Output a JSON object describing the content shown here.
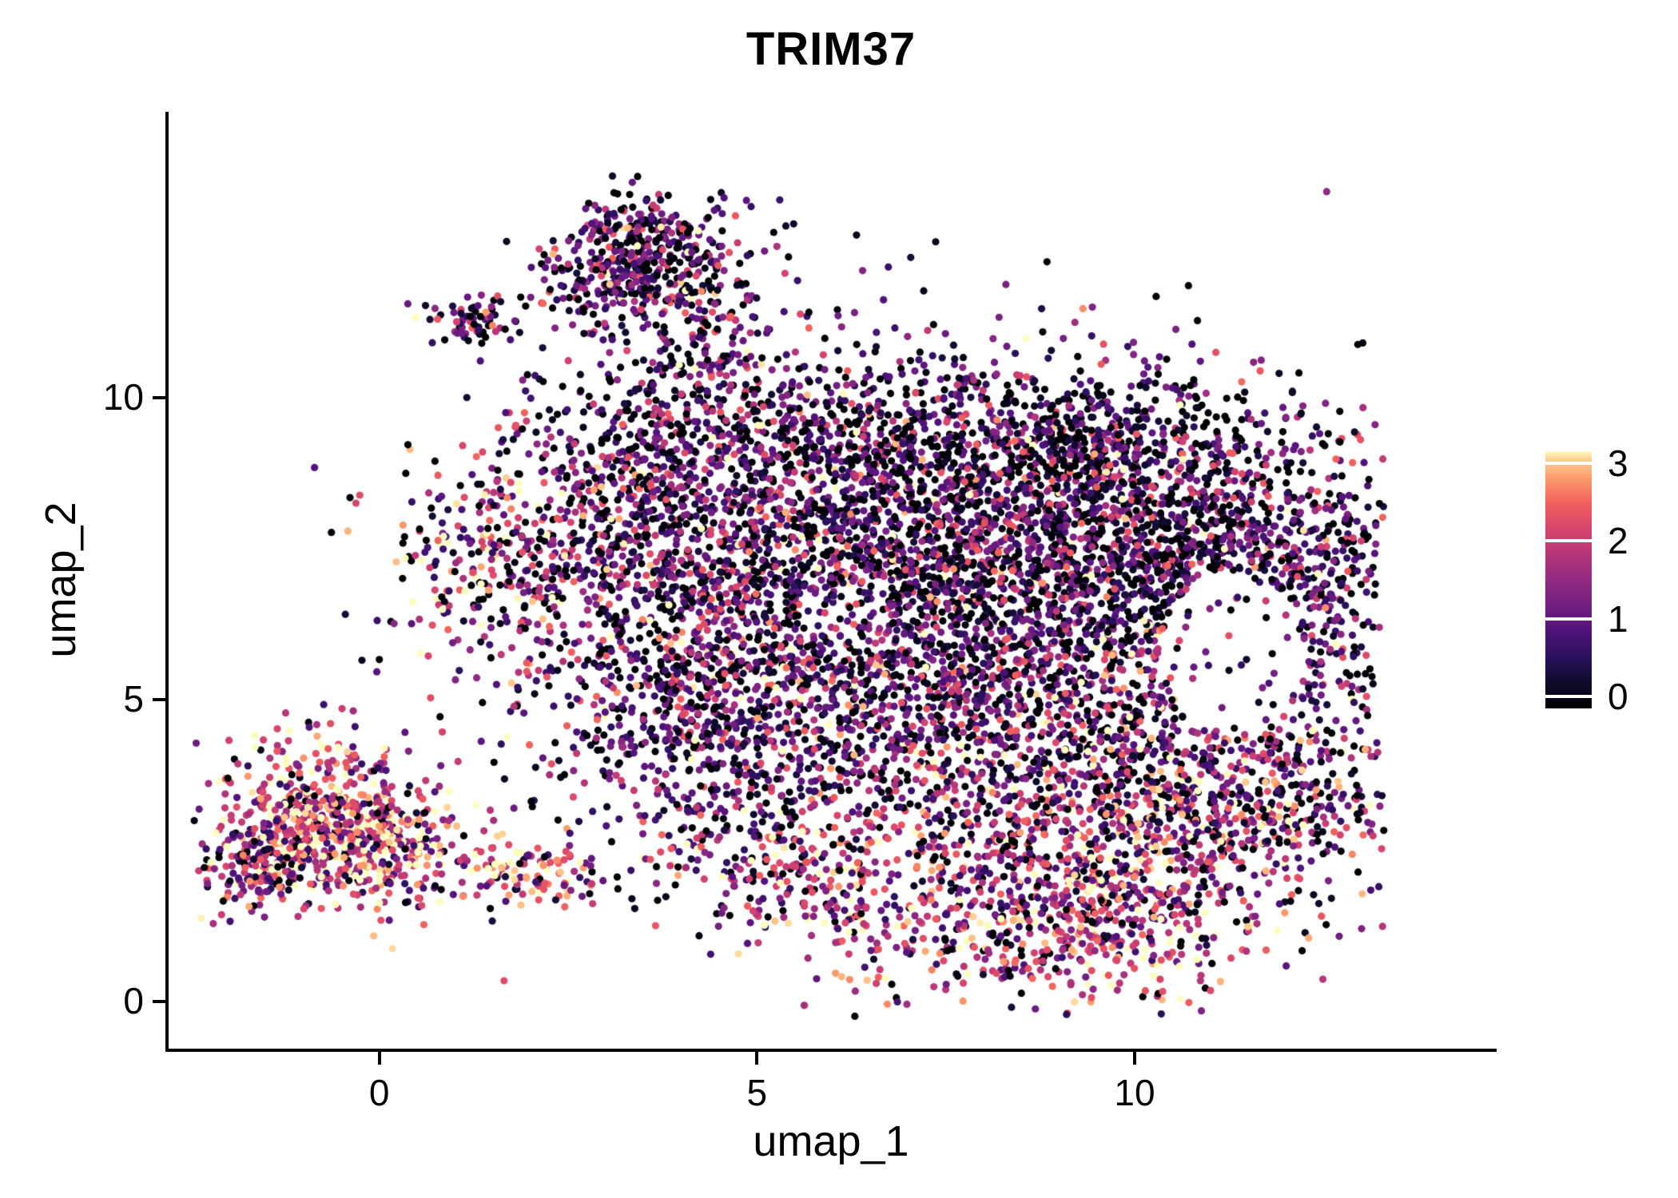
{
  "chart_data": {
    "type": "scatter",
    "title": "TRIM37",
    "xlabel": "umap_1",
    "ylabel": "umap_2",
    "xlim": [
      -2.8,
      14.76
    ],
    "ylim": [
      -0.78,
      14.74
    ],
    "x_ticks": [
      0,
      5,
      10
    ],
    "x_tick_labels": [
      "0",
      "5",
      "10"
    ],
    "y_ticks": [
      0,
      5,
      10
    ],
    "y_tick_labels": [
      "0",
      "5",
      "10"
    ],
    "grid": false,
    "point_radius_px": 4.6,
    "background": "#ffffff",
    "axis_color": "#000000",
    "colormap": {
      "name": "magma",
      "stops": [
        [
          0.0,
          "#000004"
        ],
        [
          0.1,
          "#0e0b2b"
        ],
        [
          0.2,
          "#2c115f"
        ],
        [
          0.3,
          "#51127c"
        ],
        [
          0.4,
          "#721f81"
        ],
        [
          0.5,
          "#932b80"
        ],
        [
          0.6,
          "#b63679"
        ],
        [
          0.7,
          "#d8456c"
        ],
        [
          0.8,
          "#f1605d"
        ],
        [
          0.9,
          "#fe9f6d"
        ],
        [
          0.97,
          "#fed395"
        ],
        [
          1.0,
          "#fcfdbf"
        ]
      ]
    },
    "color_scale": {
      "min": 0,
      "max": 3,
      "bar_range": [
        -0.15,
        3.15
      ],
      "ticks": [
        3,
        2,
        1,
        0
      ],
      "tick_labels": [
        "3",
        "2",
        "1",
        "0"
      ],
      "legend_position": "right"
    },
    "expr_profiles": {
      "default": [
        0.4,
        0.37,
        0.18,
        0.05
      ],
      "dark": [
        0.48,
        0.36,
        0.14,
        0.02
      ],
      "med_warm": [
        0.27,
        0.32,
        0.29,
        0.12
      ],
      "warm": [
        0.22,
        0.3,
        0.33,
        0.15
      ],
      "hot": [
        0.12,
        0.22,
        0.42,
        0.24
      ],
      "hottest": [
        0.1,
        0.18,
        0.38,
        0.34
      ],
      "peninsula": [
        0.42,
        0.38,
        0.16,
        0.04
      ]
    },
    "clusters": [
      {
        "x": 5.5,
        "y": 7.5,
        "sx": 1.8,
        "sy": 1.5,
        "n": 1300,
        "p": "default"
      },
      {
        "x": 8.5,
        "y": 7.6,
        "sx": 1.7,
        "sy": 1.4,
        "n": 1400,
        "p": "dark"
      },
      {
        "x": 11.0,
        "y": 7.6,
        "sx": 1.2,
        "sy": 1.2,
        "n": 800,
        "p": "dark"
      },
      {
        "x": 7.0,
        "y": 5.0,
        "sx": 2.2,
        "sy": 1.3,
        "n": 1100,
        "p": "default"
      },
      {
        "x": 9.5,
        "y": 3.4,
        "sx": 1.6,
        "sy": 1.1,
        "n": 800,
        "p": "med_warm"
      },
      {
        "x": 8.9,
        "y": 1.4,
        "sx": 1.5,
        "sy": 0.75,
        "n": 650,
        "p": "hot"
      },
      {
        "x": 4.2,
        "y": 4.8,
        "sx": 1.1,
        "sy": 1.1,
        "n": 450,
        "p": "default"
      },
      {
        "x": 12.4,
        "y": 5.8,
        "sx": 0.7,
        "sy": 1.5,
        "n": 320,
        "p": "default"
      },
      {
        "x": 3.4,
        "y": 8.3,
        "sx": 1.0,
        "sy": 0.9,
        "n": 420,
        "p": "default"
      },
      {
        "x": 5.3,
        "y": 9.6,
        "sx": 1.4,
        "sy": 0.55,
        "n": 300,
        "p": "dark"
      },
      {
        "x": 1.6,
        "y": 7.2,
        "sx": 0.8,
        "sy": 0.8,
        "n": 260,
        "p": "med_warm"
      },
      {
        "x": 9.3,
        "y": 9.2,
        "sx": 1.3,
        "sy": 0.7,
        "n": 420,
        "p": "dark"
      },
      {
        "x": 11.5,
        "y": 3.2,
        "sx": 1.0,
        "sy": 0.8,
        "n": 330,
        "p": "med_warm"
      },
      {
        "x": 5.5,
        "y": 2.3,
        "sx": 0.9,
        "sy": 0.6,
        "n": 220,
        "p": "warm"
      },
      {
        "x": 7.5,
        "y": 6.2,
        "sx": 2.9,
        "sy": 2.4,
        "n": 700,
        "p": "default"
      },
      {
        "x": 3.6,
        "y": 12.6,
        "sx": 0.55,
        "sy": 0.5,
        "n": 260,
        "p": "peninsula"
      },
      {
        "x": 3.0,
        "y": 11.9,
        "sx": 0.5,
        "sy": 0.45,
        "n": 170,
        "p": "peninsula"
      },
      {
        "x": 1.25,
        "y": 11.3,
        "sx": 0.28,
        "sy": 0.22,
        "n": 70,
        "p": "peninsula"
      },
      {
        "x": 4.3,
        "y": 11.7,
        "sx": 0.45,
        "sy": 0.55,
        "n": 120,
        "p": "peninsula"
      },
      {
        "x": 4.4,
        "y": 10.6,
        "sx": 0.5,
        "sy": 0.45,
        "n": 90,
        "p": "peninsula"
      },
      {
        "x": -1.2,
        "y": 3.1,
        "sx": 0.55,
        "sy": 0.7,
        "n": 300,
        "p": "hot"
      },
      {
        "x": -0.4,
        "y": 3.0,
        "sx": 0.5,
        "sy": 0.6,
        "n": 250,
        "p": "hot"
      },
      {
        "x": 0.1,
        "y": 2.5,
        "sx": 0.45,
        "sy": 0.5,
        "n": 200,
        "p": "hottest"
      },
      {
        "x": -1.5,
        "y": 2.2,
        "sx": 0.4,
        "sy": 0.4,
        "n": 130,
        "p": "warm"
      },
      {
        "x": 1.7,
        "y": 2.2,
        "sx": 0.45,
        "sy": 0.35,
        "n": 80,
        "p": "hottest"
      },
      {
        "x": 2.5,
        "y": 2.0,
        "sx": 0.3,
        "sy": 0.25,
        "n": 40,
        "p": "hot"
      }
    ],
    "exclusions": [
      {
        "x": 11.3,
        "y": 5.8,
        "rx": 0.95,
        "ry": 1.35,
        "keep": 0.12
      },
      {
        "x": 6.2,
        "y": 6.3,
        "rx": 0.7,
        "ry": 0.6,
        "keep": 0.5
      }
    ],
    "bounds": {
      "x": [
        -2.45,
        13.3
      ],
      "y": [
        -0.25,
        13.75
      ]
    },
    "seed": 42
  }
}
